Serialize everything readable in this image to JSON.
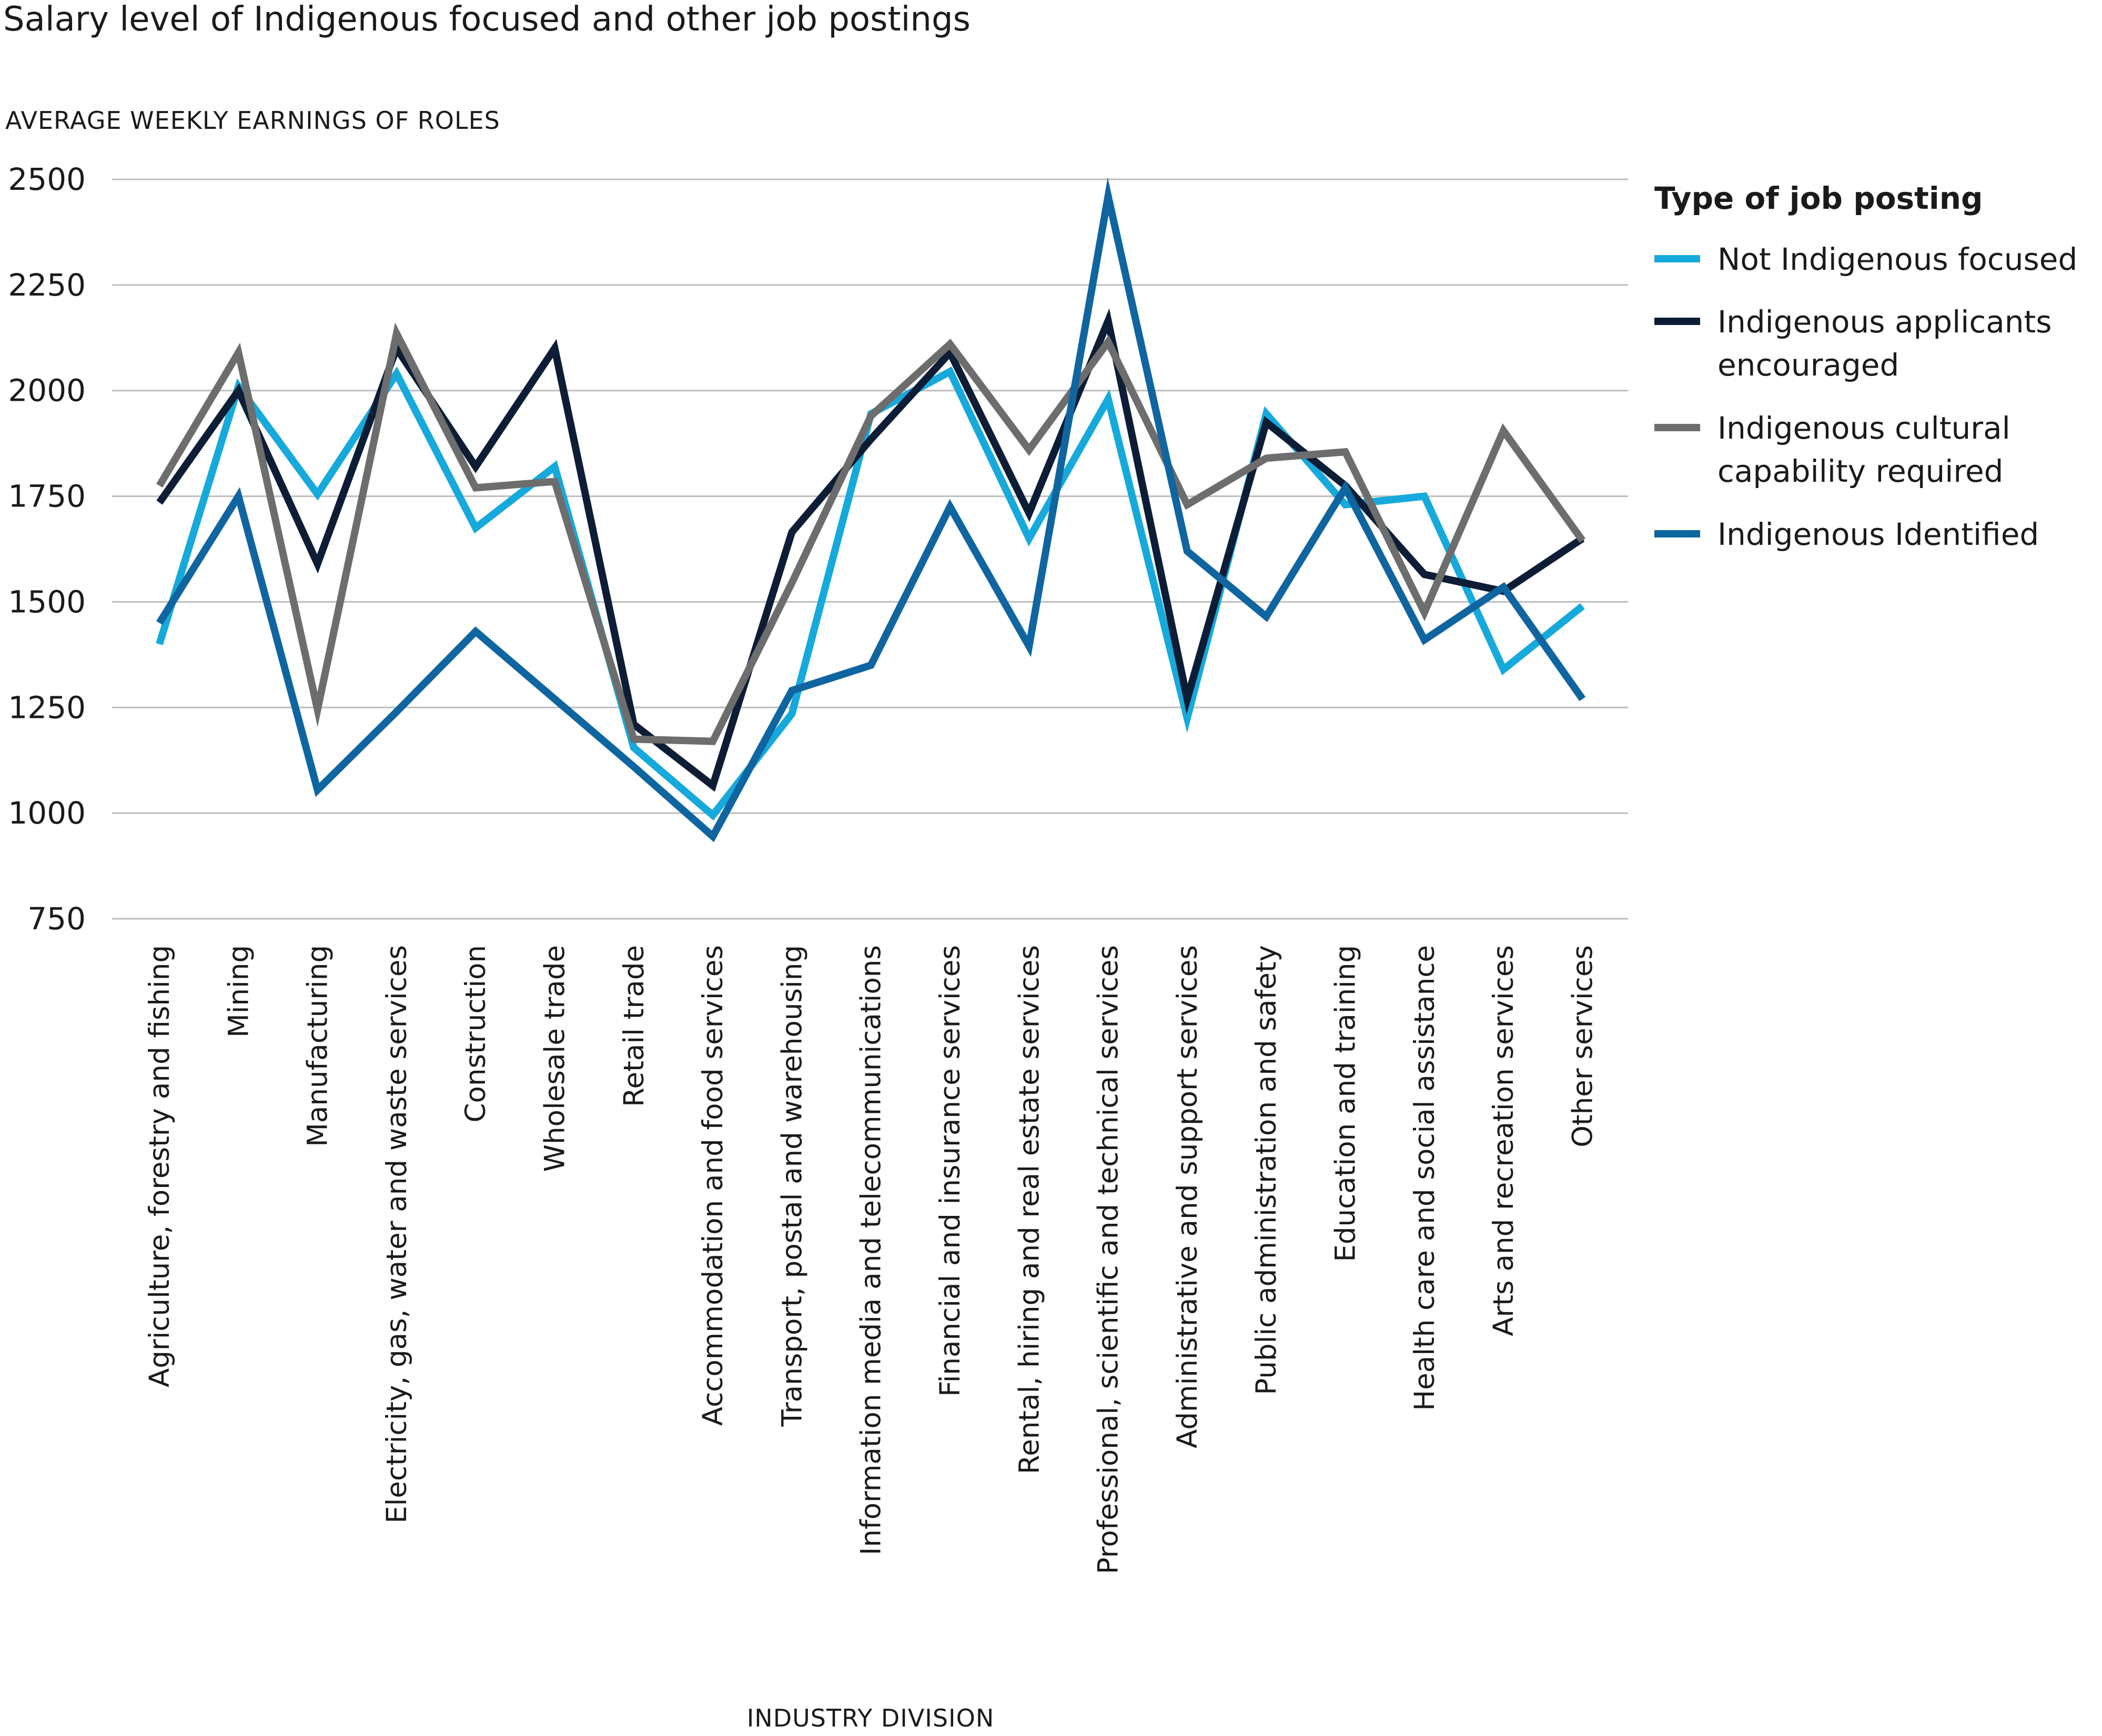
{
  "chart_data": {
    "type": "line",
    "title": "Salary level of Indigenous focused and other job postings",
    "ylabel": "AVERAGE WEEKLY EARNINGS OF ROLES",
    "xlabel": "INDUSTRY DIVISION",
    "ylim": [
      750,
      2500
    ],
    "yticks": [
      2500,
      2250,
      2000,
      1750,
      1500,
      1250,
      1000,
      750
    ],
    "grid": true,
    "legend_title": "Type of job posting",
    "legend_position": "right",
    "categories": [
      "Agriculture, forestry and fishing",
      "Mining",
      "Manufacturing",
      "Electricity, gas, water and waste services",
      "Construction",
      "Wholesale trade",
      "Retail trade",
      "Accommodation and food services",
      "Transport, postal and warehousing",
      "Information media and telecommunications",
      "Financial and insurance services",
      "Rental, hiring and real estate services",
      "Professional, scientific and technical services",
      "Administrative and support services",
      "Public administration and safety",
      "Education and training",
      "Health care and social assistance",
      "Arts and recreation services",
      "Other services"
    ],
    "series": [
      {
        "name": "Not Indigenous focused",
        "legend_lines": [
          "Not Indigenous focused"
        ],
        "color": "#16a9dc",
        "values": [
          1400,
          2010,
          1755,
          2040,
          1675,
          1820,
          1155,
          995,
          1235,
          1945,
          2045,
          1650,
          1980,
          1225,
          1945,
          1730,
          1750,
          1340,
          1490
        ]
      },
      {
        "name": "Indigenous applicants encouraged",
        "legend_lines": [
          "Indigenous applicants",
          "encouraged"
        ],
        "color": "#0d1d36",
        "values": [
          1735,
          2000,
          1590,
          2100,
          1820,
          2100,
          1210,
          1065,
          1665,
          1885,
          2090,
          1710,
          2165,
          1270,
          1925,
          1775,
          1565,
          1525,
          1650
        ]
      },
      {
        "name": "Indigenous cultural capability required",
        "legend_lines": [
          "Indigenous cultural",
          "capability required"
        ],
        "color": "#6d6d6d",
        "values": [
          1775,
          2090,
          1245,
          2135,
          1770,
          1785,
          1175,
          1170,
          1545,
          1940,
          2110,
          1860,
          2115,
          1730,
          1840,
          1855,
          1475,
          1905,
          1645
        ]
      },
      {
        "name": "Indigenous Identified",
        "legend_lines": [
          "Indigenous Identified"
        ],
        "color": "#0f65a0",
        "values": [
          1450,
          1750,
          1055,
          1240,
          1430,
          1270,
          1110,
          945,
          1290,
          1350,
          1725,
          1395,
          2460,
          1620,
          1465,
          1770,
          1410,
          1535,
          1270
        ]
      }
    ]
  }
}
